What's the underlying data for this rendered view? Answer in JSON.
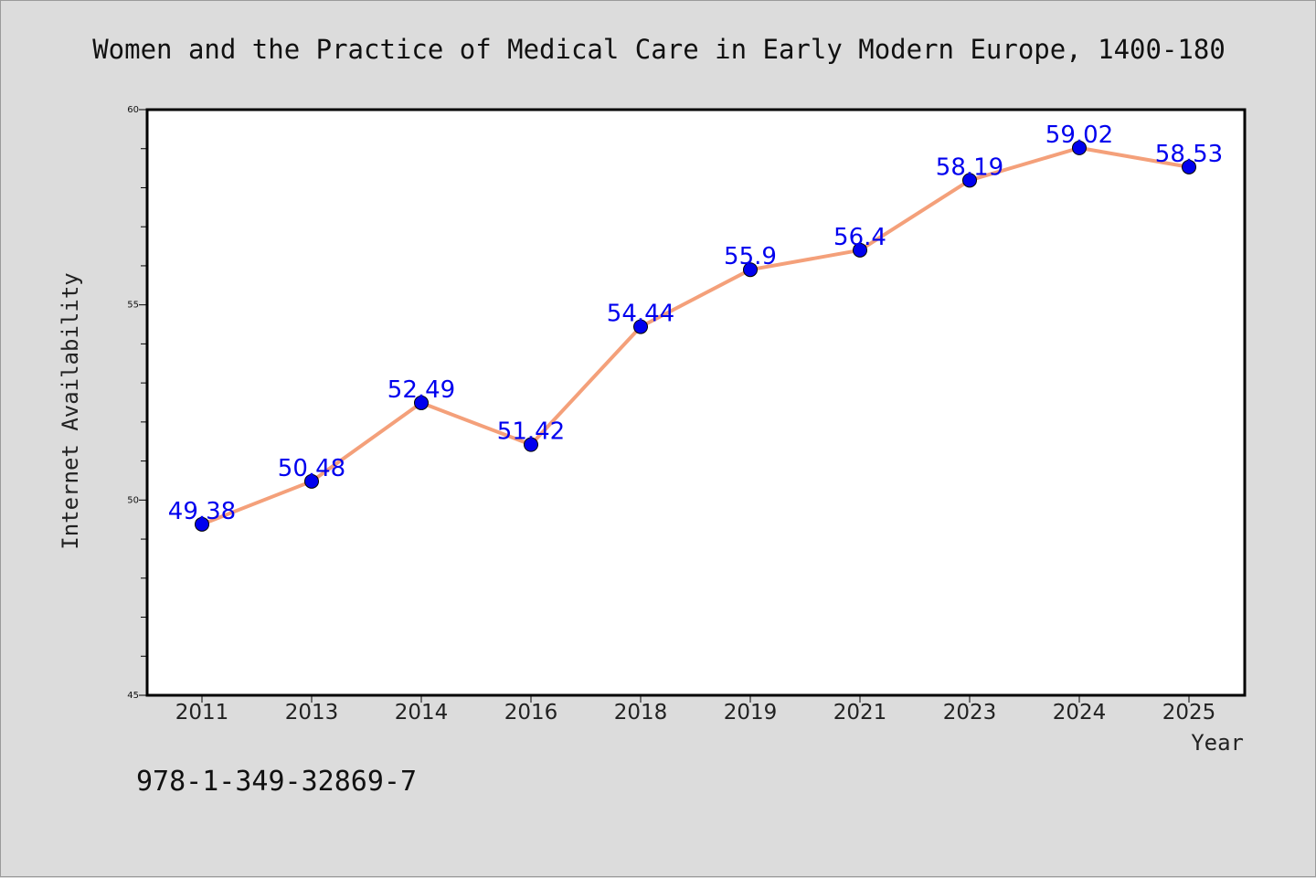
{
  "chart_data": {
    "type": "line",
    "title": "Women and the Practice of Medical Care in Early Modern Europe, 1400-180",
    "xlabel": "Year",
    "ylabel": "Internet Availability",
    "categories": [
      "2011",
      "2013",
      "2014",
      "2016",
      "2018",
      "2019",
      "2021",
      "2023",
      "2024",
      "2025"
    ],
    "series": [
      {
        "values": [
          49.38,
          50.48,
          52.49,
          51.42,
          54.44,
          55.9,
          56.4,
          58.19,
          59.02,
          58.53
        ],
        "data_labels": [
          "49.38",
          "50.48",
          "52.49",
          "51.42",
          "54.44",
          "55.9",
          "56.4",
          "58.19",
          "59.02",
          "58.53"
        ],
        "line_color": "#f4a07a",
        "marker_color": "#0000ee"
      }
    ],
    "ylim": [
      45,
      60
    ],
    "yticks": [
      "45",
      "50",
      "55",
      "60"
    ],
    "grid": false,
    "legend": "none"
  },
  "footer": {
    "isbn": "978-1-349-32869-7"
  }
}
